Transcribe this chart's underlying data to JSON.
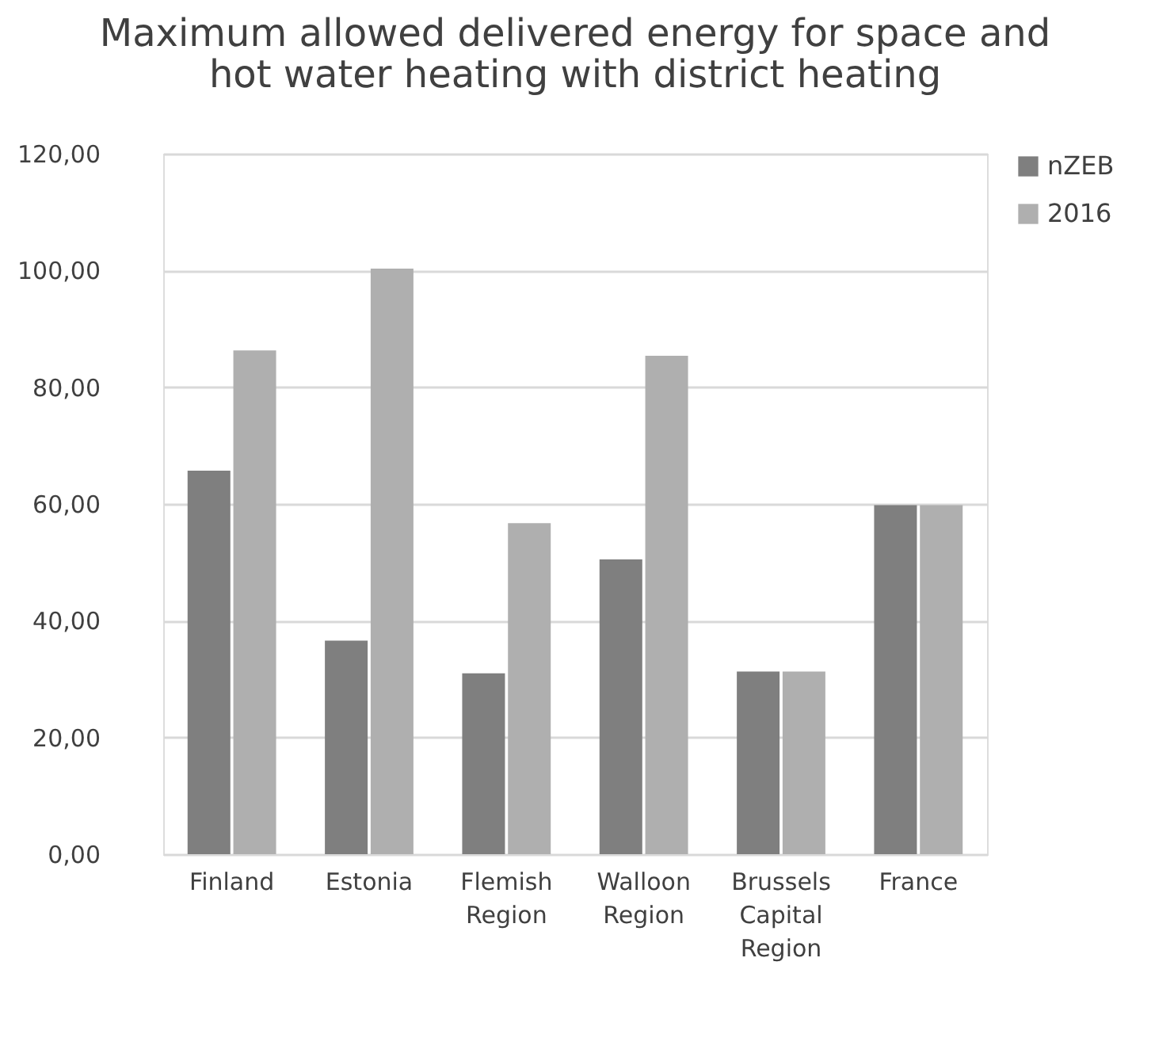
{
  "chart_data": {
    "type": "bar",
    "title": "Maximum allowed delivered energy for space and hot water heating with district heating",
    "categories": [
      "Finland",
      "Estonia",
      "Flemish Region",
      "Walloon Region",
      "Brussels Capital Region",
      "France"
    ],
    "series": [
      {
        "name": "nZEB",
        "color": "#7f7f7f",
        "values": [
          65.7,
          36.6,
          31.0,
          50.5,
          31.3,
          59.8
        ]
      },
      {
        "name": "2016",
        "color": "#afafaf",
        "values": [
          86.3,
          100.3,
          56.7,
          85.4,
          31.3,
          59.8
        ]
      }
    ],
    "ylim": [
      0,
      120
    ],
    "yticks": [
      {
        "value": 0,
        "label": "0,00"
      },
      {
        "value": 20,
        "label": "20,00"
      },
      {
        "value": 40,
        "label": "40,00"
      },
      {
        "value": 60,
        "label": "60,00"
      },
      {
        "value": 80,
        "label": "80,00"
      },
      {
        "value": 100,
        "label": "100,00"
      },
      {
        "value": 120,
        "label": "120,00"
      }
    ],
    "grid": "y",
    "legend": "right"
  }
}
